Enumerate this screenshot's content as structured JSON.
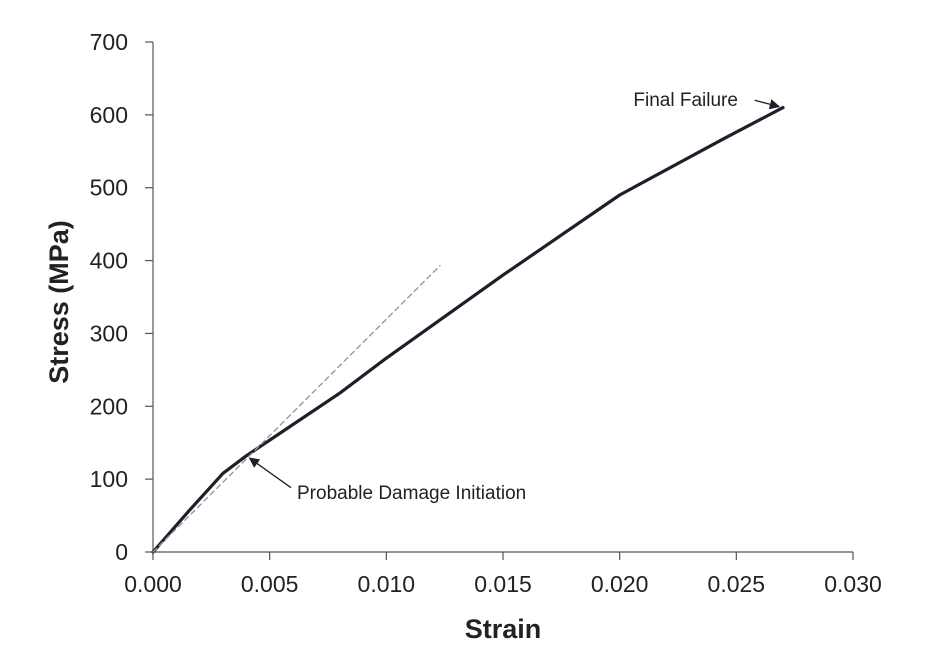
{
  "chart_data": {
    "type": "line",
    "title": "",
    "xlabel": "Strain",
    "ylabel": "Stress (MPa)",
    "xlim": [
      0,
      0.03
    ],
    "ylim": [
      0,
      700
    ],
    "x_ticks": [
      0,
      0.005,
      0.01,
      0.015,
      0.02,
      0.025,
      0.03
    ],
    "x_tick_labels": [
      "0.000",
      "0.005",
      "0.010",
      "0.015",
      "0.020",
      "0.025",
      "0.030"
    ],
    "y_ticks": [
      0,
      100,
      200,
      300,
      400,
      500,
      600,
      700
    ],
    "y_tick_labels": [
      "0",
      "100",
      "200",
      "300",
      "400",
      "500",
      "600",
      "700"
    ],
    "grid": false,
    "legend": "none",
    "series": [
      {
        "style": "solid",
        "color": "#1f1f2b",
        "x": [
          0,
          0.0015,
          0.003,
          0.004,
          0.006,
          0.008,
          0.01,
          0.015,
          0.02,
          0.0245,
          0.027
        ],
        "y": [
          0,
          55,
          108,
          132,
          175,
          218,
          266,
          380,
          490,
          568,
          610
        ]
      },
      {
        "style": "dashed",
        "color": "#999999",
        "x": [
          0,
          0.0123
        ],
        "y": [
          0,
          393
        ]
      }
    ],
    "annotations": [
      {
        "text": "Final Failure",
        "point": {
          "x": 0.027,
          "y": 610
        },
        "label_anchor": {
          "x": 0.023,
          "y": 620
        }
      },
      {
        "text": "Probable Damage Initiation",
        "point": {
          "x": 0.004,
          "y": 132
        },
        "label_anchor": {
          "x": 0.006,
          "y": 80
        }
      }
    ]
  }
}
